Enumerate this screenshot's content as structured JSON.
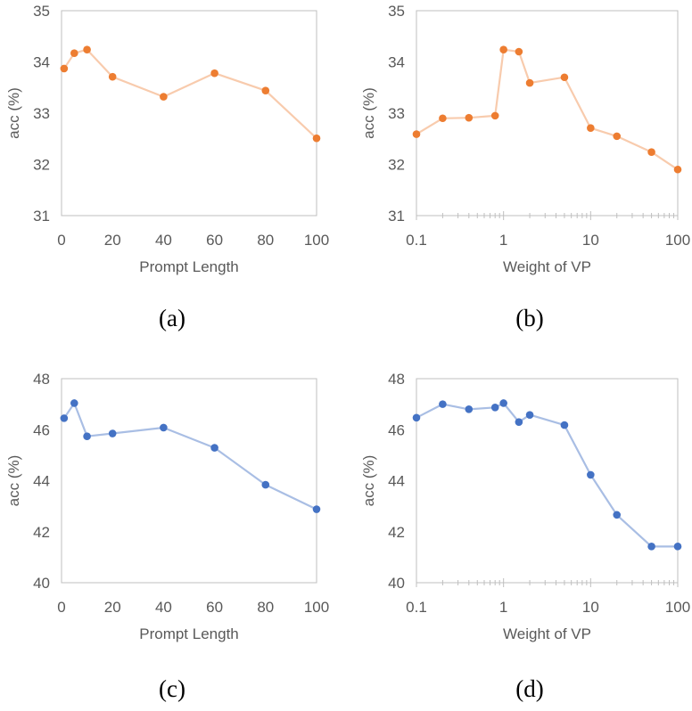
{
  "chart_data": [
    {
      "type": "line",
      "panel": "(a)",
      "xscale": "linear",
      "x": [
        1,
        5,
        10,
        20,
        40,
        60,
        80,
        100
      ],
      "series": [
        {
          "values": [
            33.87,
            34.17,
            34.24,
            33.71,
            33.32,
            33.78,
            33.44,
            32.51
          ],
          "color": "#ED7D31",
          "line_color": "#F8CBAD"
        }
      ],
      "xlabel": "Prompt Length",
      "ylabel": "acc (%)",
      "xlim": [
        0,
        100
      ],
      "ylim": [
        31,
        35
      ],
      "xticks": [
        0,
        20,
        40,
        60,
        80,
        100
      ],
      "xtick_labels": [
        "0",
        "20",
        "40",
        "60",
        "80",
        "100"
      ],
      "yticks": [
        31,
        32,
        33,
        34,
        35
      ],
      "ytick_labels": [
        "31",
        "32",
        "33",
        "34",
        "35"
      ],
      "grid": false,
      "legend": "none"
    },
    {
      "type": "line",
      "panel": "(b)",
      "xscale": "log",
      "x": [
        0.1,
        0.2,
        0.4,
        0.8,
        1,
        1.5,
        2,
        5,
        10,
        20,
        50,
        100
      ],
      "series": [
        {
          "values": [
            32.59,
            32.9,
            32.91,
            32.95,
            34.24,
            34.2,
            33.59,
            33.7,
            32.71,
            32.55,
            32.24,
            31.9
          ],
          "color": "#ED7D31",
          "line_color": "#F8CBAD"
        }
      ],
      "xlabel": "Weight of VP",
      "ylabel": "acc (%)",
      "xlim": [
        0.1,
        100
      ],
      "ylim": [
        31,
        35
      ],
      "xticks": [
        0.1,
        1,
        10,
        100
      ],
      "xtick_labels": [
        "0.1",
        "1",
        "10",
        "100"
      ],
      "yticks": [
        31,
        32,
        33,
        34,
        35
      ],
      "ytick_labels": [
        "31",
        "32",
        "33",
        "34",
        "35"
      ],
      "grid": false,
      "legend": "none"
    },
    {
      "type": "line",
      "panel": "(c)",
      "xscale": "linear",
      "x": [
        1,
        5,
        10,
        20,
        40,
        60,
        80,
        100
      ],
      "series": [
        {
          "values": [
            46.45,
            47.04,
            45.74,
            45.85,
            46.08,
            45.29,
            43.84,
            42.88
          ],
          "color": "#4472C4",
          "line_color": "#A9BEE4"
        }
      ],
      "xlabel": "Prompt Length",
      "ylabel": "acc (%)",
      "xlim": [
        0,
        100
      ],
      "ylim": [
        40,
        48
      ],
      "xticks": [
        0,
        20,
        40,
        60,
        80,
        100
      ],
      "xtick_labels": [
        "0",
        "20",
        "40",
        "60",
        "80",
        "100"
      ],
      "yticks": [
        40,
        42,
        44,
        46,
        48
      ],
      "ytick_labels": [
        "40",
        "42",
        "44",
        "46",
        "48"
      ],
      "grid": false,
      "legend": "none"
    },
    {
      "type": "line",
      "panel": "(d)",
      "xscale": "log",
      "x": [
        0.1,
        0.2,
        0.4,
        0.8,
        1,
        1.5,
        2,
        5,
        10,
        20,
        50,
        100
      ],
      "series": [
        {
          "values": [
            46.47,
            47.0,
            46.8,
            46.87,
            47.04,
            46.3,
            46.58,
            46.18,
            44.23,
            42.66,
            41.42,
            41.42
          ],
          "color": "#4472C4",
          "line_color": "#A9BEE4"
        }
      ],
      "xlabel": "Weight of VP",
      "ylabel": "acc (%)",
      "xlim": [
        0.1,
        100
      ],
      "ylim": [
        40,
        48
      ],
      "xticks": [
        0.1,
        1,
        10,
        100
      ],
      "xtick_labels": [
        "0.1",
        "1",
        "10",
        "100"
      ],
      "yticks": [
        40,
        42,
        44,
        46,
        48
      ],
      "ytick_labels": [
        "40",
        "42",
        "44",
        "46",
        "48"
      ],
      "grid": false,
      "legend": "none"
    }
  ]
}
